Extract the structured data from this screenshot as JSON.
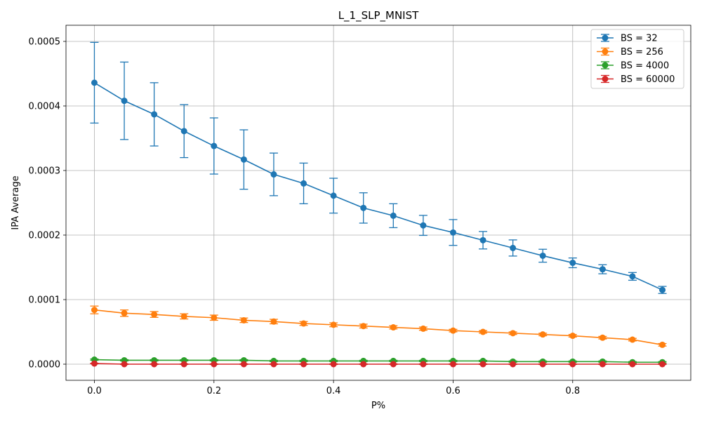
{
  "chart_data": {
    "type": "line",
    "title": "L_1_SLP_MNIST",
    "xlabel": "P%",
    "ylabel": "IPA Average",
    "xlim": [
      -0.0475,
      0.9975
    ],
    "ylim": [
      -2.5e-05,
      0.000525
    ],
    "xticks": [
      0.0,
      0.2,
      0.4,
      0.6,
      0.8
    ],
    "xtick_labels": [
      "0.0",
      "0.2",
      "0.4",
      "0.6",
      "0.8"
    ],
    "yticks": [
      0.0,
      0.0001,
      0.0002,
      0.0003,
      0.0004,
      0.0005
    ],
    "ytick_labels": [
      "0.0000",
      "0.0001",
      "0.0002",
      "0.0003",
      "0.0004",
      "0.0005"
    ],
    "grid": true,
    "legend_position": "top-right",
    "x": [
      0.0,
      0.05,
      0.1,
      0.15,
      0.2,
      0.25,
      0.3,
      0.35,
      0.4,
      0.45,
      0.5,
      0.55,
      0.6,
      0.65,
      0.7,
      0.75,
      0.8,
      0.85,
      0.9,
      0.95
    ],
    "series": [
      {
        "name": "BS = 32",
        "color": "#1f77b4",
        "values": [
          0.000436,
          0.000408,
          0.000387,
          0.000361,
          0.000338,
          0.000317,
          0.000294,
          0.00028,
          0.000261,
          0.000242,
          0.00023,
          0.000215,
          0.000204,
          0.000192,
          0.00018,
          0.000168,
          0.000157,
          0.000147,
          0.000136,
          0.000115
        ],
        "errors": [
          6.25e-05,
          6e-05,
          4.9e-05,
          4.1e-05,
          4.35e-05,
          4.6e-05,
          3.3e-05,
          3.15e-05,
          2.7e-05,
          2.35e-05,
          1.85e-05,
          1.55e-05,
          2e-05,
          1.35e-05,
          1.25e-05,
          1e-05,
          7.5e-06,
          7e-06,
          6e-06,
          5.5e-06
        ]
      },
      {
        "name": "BS = 256",
        "color": "#ff7f0e",
        "values": [
          8.4e-05,
          7.9e-05,
          7.7e-05,
          7.4e-05,
          7.2e-05,
          6.8e-05,
          6.6e-05,
          6.3e-05,
          6.1e-05,
          5.9e-05,
          5.7e-05,
          5.5e-05,
          5.2e-05,
          5e-05,
          4.8e-05,
          4.6e-05,
          4.4e-05,
          4.1e-05,
          3.8e-05,
          3e-05
        ],
        "errors": [
          6e-06,
          5e-06,
          4.5e-06,
          4e-06,
          4e-06,
          3.5e-06,
          3.5e-06,
          3e-06,
          3e-06,
          3e-06,
          2.5e-06,
          2.5e-06,
          2e-06,
          2e-06,
          2e-06,
          2e-06,
          2e-06,
          2e-06,
          2e-06,
          2e-06
        ]
      },
      {
        "name": "BS = 4000",
        "color": "#2ca02c",
        "values": [
          7e-06,
          6e-06,
          6e-06,
          6e-06,
          6e-06,
          6e-06,
          5e-06,
          5e-06,
          5e-06,
          5e-06,
          5e-06,
          5e-06,
          5e-06,
          5e-06,
          4e-06,
          4e-06,
          4e-06,
          4e-06,
          3e-06,
          3e-06
        ],
        "errors": [
          1e-06,
          1e-06,
          1e-06,
          1e-06,
          1e-06,
          1e-06,
          1e-06,
          1e-06,
          1e-06,
          1e-06,
          1e-06,
          1e-06,
          1e-06,
          1e-06,
          1e-06,
          1e-06,
          1e-06,
          1e-06,
          1e-06,
          1e-06
        ]
      },
      {
        "name": "BS = 60000",
        "color": "#d62728",
        "values": [
          1e-06,
          0.0,
          0.0,
          0.0,
          0.0,
          0.0,
          0.0,
          0.0,
          0.0,
          0.0,
          0.0,
          0.0,
          0.0,
          0.0,
          0.0,
          0.0,
          0.0,
          0.0,
          0.0,
          0.0
        ],
        "errors": [
          5e-07,
          5e-07,
          5e-07,
          5e-07,
          5e-07,
          5e-07,
          5e-07,
          5e-07,
          5e-07,
          5e-07,
          5e-07,
          5e-07,
          5e-07,
          5e-07,
          5e-07,
          5e-07,
          5e-07,
          5e-07,
          5e-07,
          5e-07
        ]
      }
    ]
  }
}
